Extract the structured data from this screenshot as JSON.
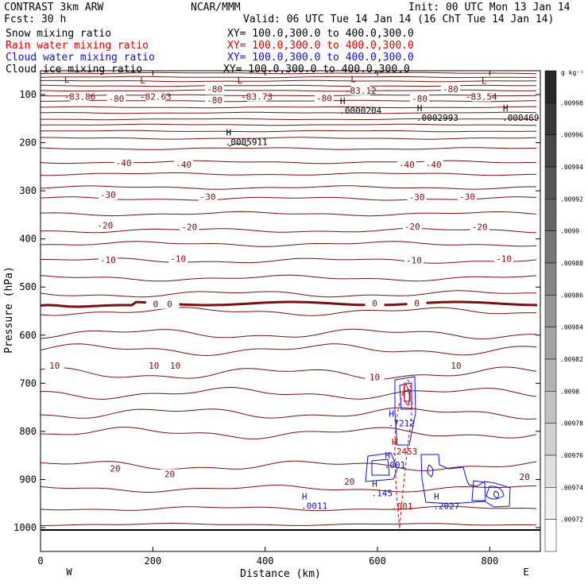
{
  "header": {
    "title": "CONTRAST  3km ARW",
    "fcst": "Fcst:   30 h",
    "center": "NCAR/MMM",
    "init": "Init: 00 UTC Mon 13 Jan 14",
    "valid": "Valid: 06 UTC Tue 14 Jan 14 (16 ChT Tue 14 Jan 14)"
  },
  "fields": [
    {
      "name": "Snow mixing ratio",
      "range": "XY= 100.0,300.0 to 400.0,300.0",
      "color": "#000000"
    },
    {
      "name": "Rain water mixing ratio",
      "range": "XY= 100.0,300.0 to 400.0,300.0",
      "color": "#e00000"
    },
    {
      "name": "Cloud water mixing ratio",
      "range": "XY= 100.0,300.0 to 400.0,300.0",
      "color": "#1010d0"
    },
    {
      "name": "Cloud ice mixing ratio",
      "range": "XY= 100.0,300.0 to 400.0,300.0",
      "color": "#000000"
    }
  ],
  "colorbar": {
    "unit": "g kg⁻¹",
    "labels": [
      ".00998",
      ".00996",
      ".00994",
      ".00992",
      ".0099",
      ".00988",
      ".00986",
      ".00984",
      ".00982",
      ".0098",
      ".00978",
      ".00976",
      ".00974",
      ".00972"
    ]
  },
  "chart_data": {
    "type": "contour",
    "xlabel": "Distance (km)",
    "ylabel": "Pressure (hPa)",
    "xlim": [
      0,
      890
    ],
    "ylim": [
      1000,
      70
    ],
    "x_ticks": [
      0,
      200,
      400,
      600,
      800
    ],
    "y_ticks": [
      100,
      200,
      300,
      400,
      500,
      600,
      700,
      800,
      900,
      1000
    ],
    "x_end_labels": {
      "left": "W",
      "right": "E"
    },
    "temperature_labels": [
      {
        "text": "-80",
        "x": 310,
        "p": 90
      },
      {
        "text": "-80",
        "x": 730,
        "p": 90
      },
      {
        "text": "-83.12",
        "x": 570,
        "p": 93
      },
      {
        "text": "-83.86",
        "x": 70,
        "p": 106
      },
      {
        "text": "-80",
        "x": 135,
        "p": 110
      },
      {
        "text": "-82.63",
        "x": 205,
        "p": 106
      },
      {
        "text": "-83.73",
        "x": 385,
        "p": 106
      },
      {
        "text": "-80",
        "x": 310,
        "p": 113
      },
      {
        "text": "-80",
        "x": 505,
        "p": 109
      },
      {
        "text": "-80",
        "x": 675,
        "p": 110
      },
      {
        "text": "-83.54",
        "x": 785,
        "p": 106
      },
      {
        "text": "-40",
        "x": 148,
        "p": 244
      },
      {
        "text": "-40",
        "x": 255,
        "p": 247
      },
      {
        "text": "-40",
        "x": 652,
        "p": 247
      },
      {
        "text": "-40",
        "x": 700,
        "p": 247
      },
      {
        "text": "-30",
        "x": 120,
        "p": 310
      },
      {
        "text": "-30",
        "x": 298,
        "p": 314
      },
      {
        "text": "-30",
        "x": 670,
        "p": 315
      },
      {
        "text": "-30",
        "x": 760,
        "p": 314
      },
      {
        "text": "-20",
        "x": 115,
        "p": 373
      },
      {
        "text": "-20",
        "x": 265,
        "p": 377
      },
      {
        "text": "-20",
        "x": 662,
        "p": 376
      },
      {
        "text": "-20",
        "x": 782,
        "p": 377
      },
      {
        "text": "-10",
        "x": 120,
        "p": 445
      },
      {
        "text": "-10",
        "x": 245,
        "p": 443
      },
      {
        "text": "-10",
        "x": 665,
        "p": 446
      },
      {
        "text": "-10",
        "x": 825,
        "p": 443
      },
      {
        "text": "0",
        "x": 205,
        "p": 537
      },
      {
        "text": "0",
        "x": 230,
        "p": 537
      },
      {
        "text": "0",
        "x": 595,
        "p": 535
      },
      {
        "text": "0",
        "x": 670,
        "p": 535
      },
      {
        "text": "10",
        "x": 25,
        "p": 665
      },
      {
        "text": "10",
        "x": 202,
        "p": 665
      },
      {
        "text": "10",
        "x": 240,
        "p": 665
      },
      {
        "text": "10",
        "x": 595,
        "p": 689
      },
      {
        "text": "10",
        "x": 740,
        "p": 665
      },
      {
        "text": "20",
        "x": 133,
        "p": 879
      },
      {
        "text": "20",
        "x": 230,
        "p": 890
      },
      {
        "text": "20",
        "x": 550,
        "p": 906
      },
      {
        "text": "20",
        "x": 862,
        "p": 896
      }
    ],
    "extrema": [
      {
        "kind": "L",
        "x": 47,
        "p": 75,
        "value": ""
      },
      {
        "kind": "L",
        "x": 182,
        "p": 77,
        "value": ""
      },
      {
        "kind": "L",
        "x": 355,
        "p": 77,
        "value": ""
      },
      {
        "kind": "L",
        "x": 557,
        "p": 74,
        "value": ""
      },
      {
        "kind": "L",
        "x": 790,
        "p": 78,
        "value": ""
      },
      {
        "kind": "H",
        "x": 538,
        "p": 120,
        "value": ".0000204",
        "field": "cloud_ice"
      },
      {
        "kind": "H",
        "x": 675,
        "p": 135,
        "value": ".0002993",
        "field": "cloud_ice"
      },
      {
        "kind": "H",
        "x": 828,
        "p": 135,
        "value": ".000469",
        "field": "cloud_ice"
      },
      {
        "kind": "H",
        "x": 335,
        "p": 185,
        "value": ".0005911",
        "field": "cloud_ice"
      },
      {
        "kind": "H",
        "x": 625,
        "p": 770,
        "value": ".7212",
        "field": "cloud_water"
      },
      {
        "kind": "H",
        "x": 630,
        "p": 828,
        "value": ".2453",
        "field": "rain"
      },
      {
        "kind": "H",
        "x": 618,
        "p": 856,
        "value": ".001",
        "field": "cloud_water"
      },
      {
        "kind": "H",
        "x": 595,
        "p": 915,
        "value": ".145",
        "field": "cloud_water"
      },
      {
        "kind": "H",
        "x": 470,
        "p": 941,
        "value": ".0011",
        "field": "cloud_water"
      },
      {
        "kind": "",
        "x": 631,
        "p": 942,
        "value": ".001",
        "field": "rain"
      },
      {
        "kind": "H",
        "x": 705,
        "p": 941,
        "value": ".2027",
        "field": "cloud_water"
      }
    ]
  }
}
